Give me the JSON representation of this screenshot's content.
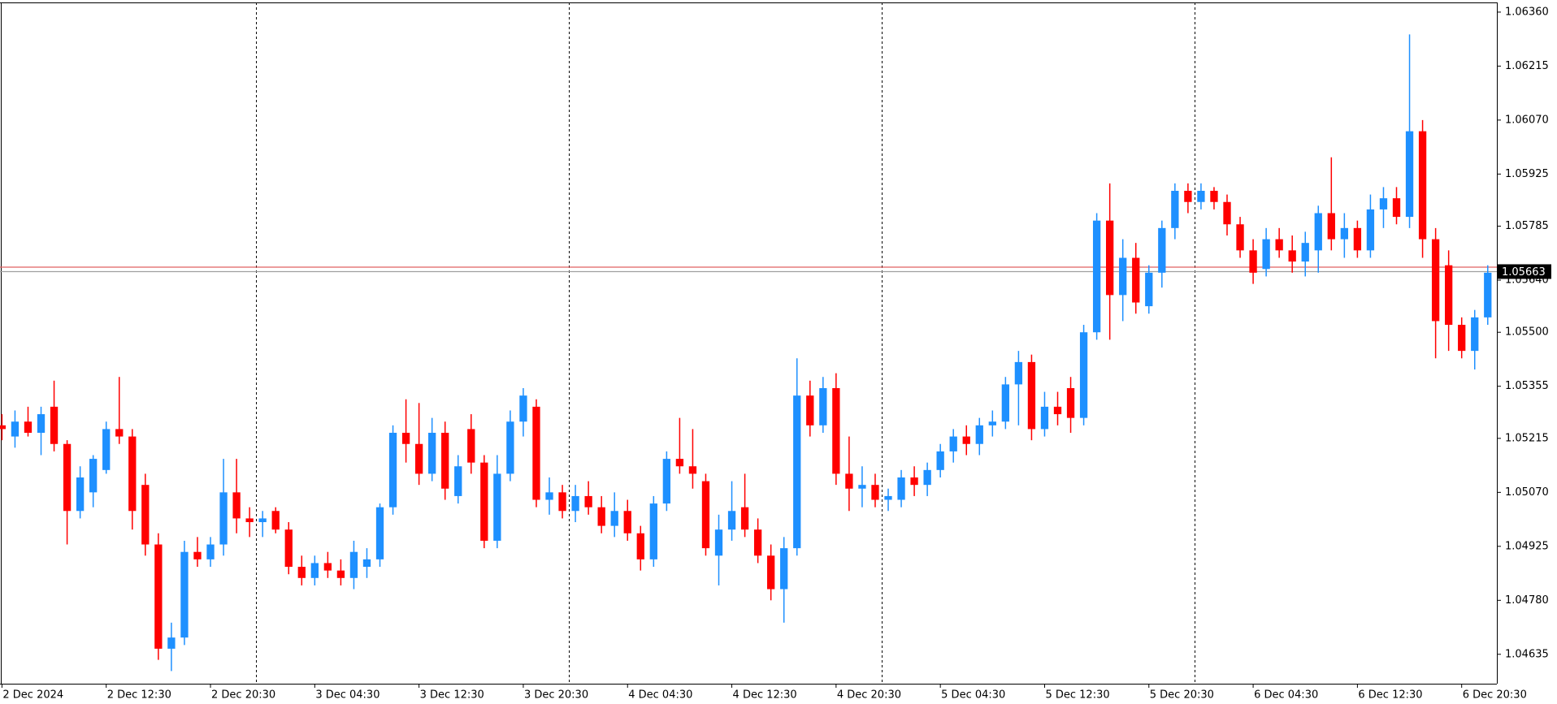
{
  "chart_data": {
    "type": "candlestick",
    "up_color": "#1e90ff",
    "down_color": "#ff0000",
    "open": [
      1.0525,
      1.0522,
      1.0526,
      1.0523,
      1.053,
      1.052,
      1.0502,
      1.0507,
      1.0513,
      1.0524,
      1.0522,
      1.0509,
      1.0493,
      1.0465,
      1.0468,
      1.0491,
      1.0489,
      1.0493,
      1.0507,
      1.05,
      1.0499,
      1.0502,
      1.0497,
      1.0487,
      1.0484,
      1.0488,
      1.0486,
      1.0484,
      1.0487,
      1.0489,
      1.0503,
      1.0523,
      1.052,
      1.0512,
      1.0523,
      1.0506,
      1.0524,
      1.0515,
      1.0494,
      1.0512,
      1.0526,
      1.053,
      1.0505,
      1.0507,
      1.0502,
      1.0506,
      1.0503,
      1.0498,
      1.0502,
      1.0496,
      1.0489,
      1.0504,
      1.0516,
      1.0514,
      1.051,
      1.049,
      1.0497,
      1.0503,
      1.0497,
      1.049,
      1.0481,
      1.0492,
      1.0533,
      1.0525,
      1.0535,
      1.0512,
      1.0508,
      1.0509,
      1.0505,
      1.0505,
      1.0511,
      1.0509,
      1.0513,
      1.0518,
      1.0522,
      1.052,
      1.0525,
      1.0526,
      1.0536,
      1.0542,
      1.0524,
      1.053,
      1.0535,
      1.0527,
      1.055,
      1.058,
      1.056,
      1.057,
      1.0557,
      1.0566,
      1.0578,
      1.0588,
      1.0585,
      1.0588,
      1.0585,
      1.0579,
      1.0572,
      1.0567,
      1.0575,
      1.0572,
      1.0569,
      1.0572,
      1.0582,
      1.0575,
      1.0578,
      1.0572,
      1.0583,
      1.0586,
      1.0581,
      1.0604,
      1.0575,
      1.0568,
      1.0552,
      1.0545,
      1.0554
    ],
    "high": [
      1.0528,
      1.0529,
      1.053,
      1.053,
      1.0537,
      1.0521,
      1.0514,
      1.0517,
      1.0526,
      1.0538,
      1.0524,
      1.0512,
      1.0496,
      1.0472,
      1.0494,
      1.0495,
      1.0495,
      1.0516,
      1.0516,
      1.0503,
      1.0502,
      1.0503,
      1.0499,
      1.049,
      1.049,
      1.0491,
      1.0489,
      1.0494,
      1.0492,
      1.0504,
      1.0525,
      1.0532,
      1.0531,
      1.0527,
      1.0526,
      1.0517,
      1.0528,
      1.0517,
      1.0517,
      1.0529,
      1.0535,
      1.0532,
      1.0511,
      1.0509,
      1.0509,
      1.051,
      1.0506,
      1.0507,
      1.0505,
      1.0498,
      1.0506,
      1.0518,
      1.0527,
      1.0524,
      1.0512,
      1.0501,
      1.051,
      1.0512,
      1.05,
      1.0493,
      1.0495,
      1.0543,
      1.0537,
      1.0538,
      1.0539,
      1.0522,
      1.0514,
      1.0512,
      1.0508,
      1.0513,
      1.0514,
      1.0515,
      1.052,
      1.0524,
      1.0525,
      1.0527,
      1.0529,
      1.0538,
      1.0545,
      1.0544,
      1.0534,
      1.0534,
      1.0538,
      1.0552,
      1.0582,
      1.059,
      1.0575,
      1.0574,
      1.0568,
      1.058,
      1.059,
      1.059,
      1.059,
      1.0589,
      1.0587,
      1.0581,
      1.0575,
      1.0578,
      1.0578,
      1.0576,
      1.0577,
      1.0584,
      1.0597,
      1.0582,
      1.058,
      1.0587,
      1.0589,
      1.0589,
      1.063,
      1.0607,
      1.0578,
      1.0572,
      1.0554,
      1.0556,
      1.0568
    ],
    "low": [
      1.0521,
      1.0519,
      1.0522,
      1.0517,
      1.0518,
      1.0493,
      1.05,
      1.0503,
      1.0512,
      1.052,
      1.0497,
      1.049,
      1.0462,
      1.0459,
      1.0466,
      1.0487,
      1.0487,
      1.049,
      1.0496,
      1.0495,
      1.0495,
      1.0496,
      1.0485,
      1.0482,
      1.0482,
      1.0484,
      1.0482,
      1.0481,
      1.0484,
      1.0487,
      1.0501,
      1.0515,
      1.0509,
      1.051,
      1.0505,
      1.0504,
      1.0512,
      1.0492,
      1.0492,
      1.051,
      1.0522,
      1.0503,
      1.0501,
      1.05,
      1.0499,
      1.0501,
      1.0496,
      1.0495,
      1.0494,
      1.0486,
      1.0487,
      1.0502,
      1.0512,
      1.0508,
      1.049,
      1.0482,
      1.0494,
      1.0495,
      1.0488,
      1.0478,
      1.0472,
      1.049,
      1.0522,
      1.0523,
      1.0509,
      1.0502,
      1.0503,
      1.0503,
      1.0502,
      1.0503,
      1.0506,
      1.0506,
      1.0511,
      1.0515,
      1.0517,
      1.0517,
      1.0522,
      1.0524,
      1.0525,
      1.0521,
      1.0522,
      1.0525,
      1.0523,
      1.0525,
      1.0548,
      1.0548,
      1.0553,
      1.0555,
      1.0555,
      1.0562,
      1.0575,
      1.0582,
      1.0583,
      1.0583,
      1.0576,
      1.057,
      1.0563,
      1.0565,
      1.057,
      1.0566,
      1.0565,
      1.0566,
      1.0572,
      1.057,
      1.057,
      1.057,
      1.0578,
      1.0579,
      1.0578,
      1.057,
      1.0543,
      1.0545,
      1.0543,
      1.054,
      1.0552
    ],
    "close": [
      1.0524,
      1.0526,
      1.0523,
      1.0528,
      1.052,
      1.0502,
      1.0511,
      1.0516,
      1.0524,
      1.0522,
      1.0502,
      1.0493,
      1.0465,
      1.0468,
      1.0491,
      1.0489,
      1.0493,
      1.0507,
      1.05,
      1.0499,
      1.05,
      1.0497,
      1.0487,
      1.0484,
      1.0488,
      1.0486,
      1.0484,
      1.0491,
      1.0489,
      1.0503,
      1.0523,
      1.052,
      1.0512,
      1.0523,
      1.0508,
      1.0514,
      1.0515,
      1.0494,
      1.0512,
      1.0526,
      1.0533,
      1.0505,
      1.0507,
      1.0502,
      1.0506,
      1.0503,
      1.0498,
      1.0502,
      1.0496,
      1.0489,
      1.0504,
      1.0516,
      1.0514,
      1.0512,
      1.0492,
      1.0497,
      1.0502,
      1.0497,
      1.049,
      1.0481,
      1.0492,
      1.0533,
      1.0525,
      1.0535,
      1.0512,
      1.0508,
      1.0509,
      1.0505,
      1.0506,
      1.0511,
      1.0509,
      1.0513,
      1.0518,
      1.0522,
      1.052,
      1.0525,
      1.0526,
      1.0536,
      1.0542,
      1.0524,
      1.053,
      1.0528,
      1.0527,
      1.055,
      1.058,
      1.056,
      1.057,
      1.0558,
      1.0566,
      1.0578,
      1.0588,
      1.0585,
      1.0588,
      1.0585,
      1.0579,
      1.0572,
      1.0566,
      1.0575,
      1.0572,
      1.0569,
      1.0574,
      1.0582,
      1.0575,
      1.0578,
      1.0572,
      1.0583,
      1.0586,
      1.0581,
      1.0604,
      1.0575,
      1.0553,
      1.0552,
      1.0545,
      1.0554,
      1.0566
    ],
    "xlim": [
      -0.15,
      114.7
    ],
    "xticks": [
      {
        "value": 0,
        "label": "2 Dec 2024"
      },
      {
        "value": 8,
        "label": "2 Dec 12:30"
      },
      {
        "value": 16,
        "label": "2 Dec 20:30"
      },
      {
        "value": 24,
        "label": "3 Dec 04:30"
      },
      {
        "value": 32,
        "label": "3 Dec 12:30"
      },
      {
        "value": 40,
        "label": "3 Dec 20:30"
      },
      {
        "value": 48,
        "label": "4 Dec 04:30"
      },
      {
        "value": 56,
        "label": "4 Dec 12:30"
      },
      {
        "value": 64,
        "label": "4 Dec 20:30"
      },
      {
        "value": 72,
        "label": "5 Dec 04:30"
      },
      {
        "value": 80,
        "label": "5 Dec 12:30"
      },
      {
        "value": 88,
        "label": "5 Dec 20:30"
      },
      {
        "value": 96,
        "label": "6 Dec 04:30"
      },
      {
        "value": 104,
        "label": "6 Dec 12:30"
      },
      {
        "value": 112,
        "label": "6 Dec 20:30"
      }
    ],
    "period_separators": [
      19.5,
      43.5,
      67.5,
      91.5
    ],
    "ylim": [
      1.04556,
      1.06386
    ],
    "yticks": [
      {
        "value": 1.0636,
        "label": "1.06360"
      },
      {
        "value": 1.06215,
        "label": "1.06215"
      },
      {
        "value": 1.0607,
        "label": "1.06070"
      },
      {
        "value": 1.05925,
        "label": "1.05925"
      },
      {
        "value": 1.05785,
        "label": "1.05785"
      },
      {
        "value": 1.0564,
        "label": "1.05640"
      },
      {
        "value": 1.055,
        "label": "1.05500"
      },
      {
        "value": 1.05355,
        "label": "1.05355"
      },
      {
        "value": 1.05215,
        "label": "1.05215"
      },
      {
        "value": 1.0507,
        "label": "1.05070"
      },
      {
        "value": 1.04925,
        "label": "1.04925"
      },
      {
        "value": 1.0478,
        "label": "1.04780"
      },
      {
        "value": 1.04635,
        "label": "1.04635"
      }
    ],
    "grid": false,
    "bid_line": {
      "value": 1.05663,
      "label": "1.05663",
      "color": "#a0a0a0"
    },
    "ask_line": {
      "value": 1.05675,
      "color": "#e06060"
    }
  }
}
